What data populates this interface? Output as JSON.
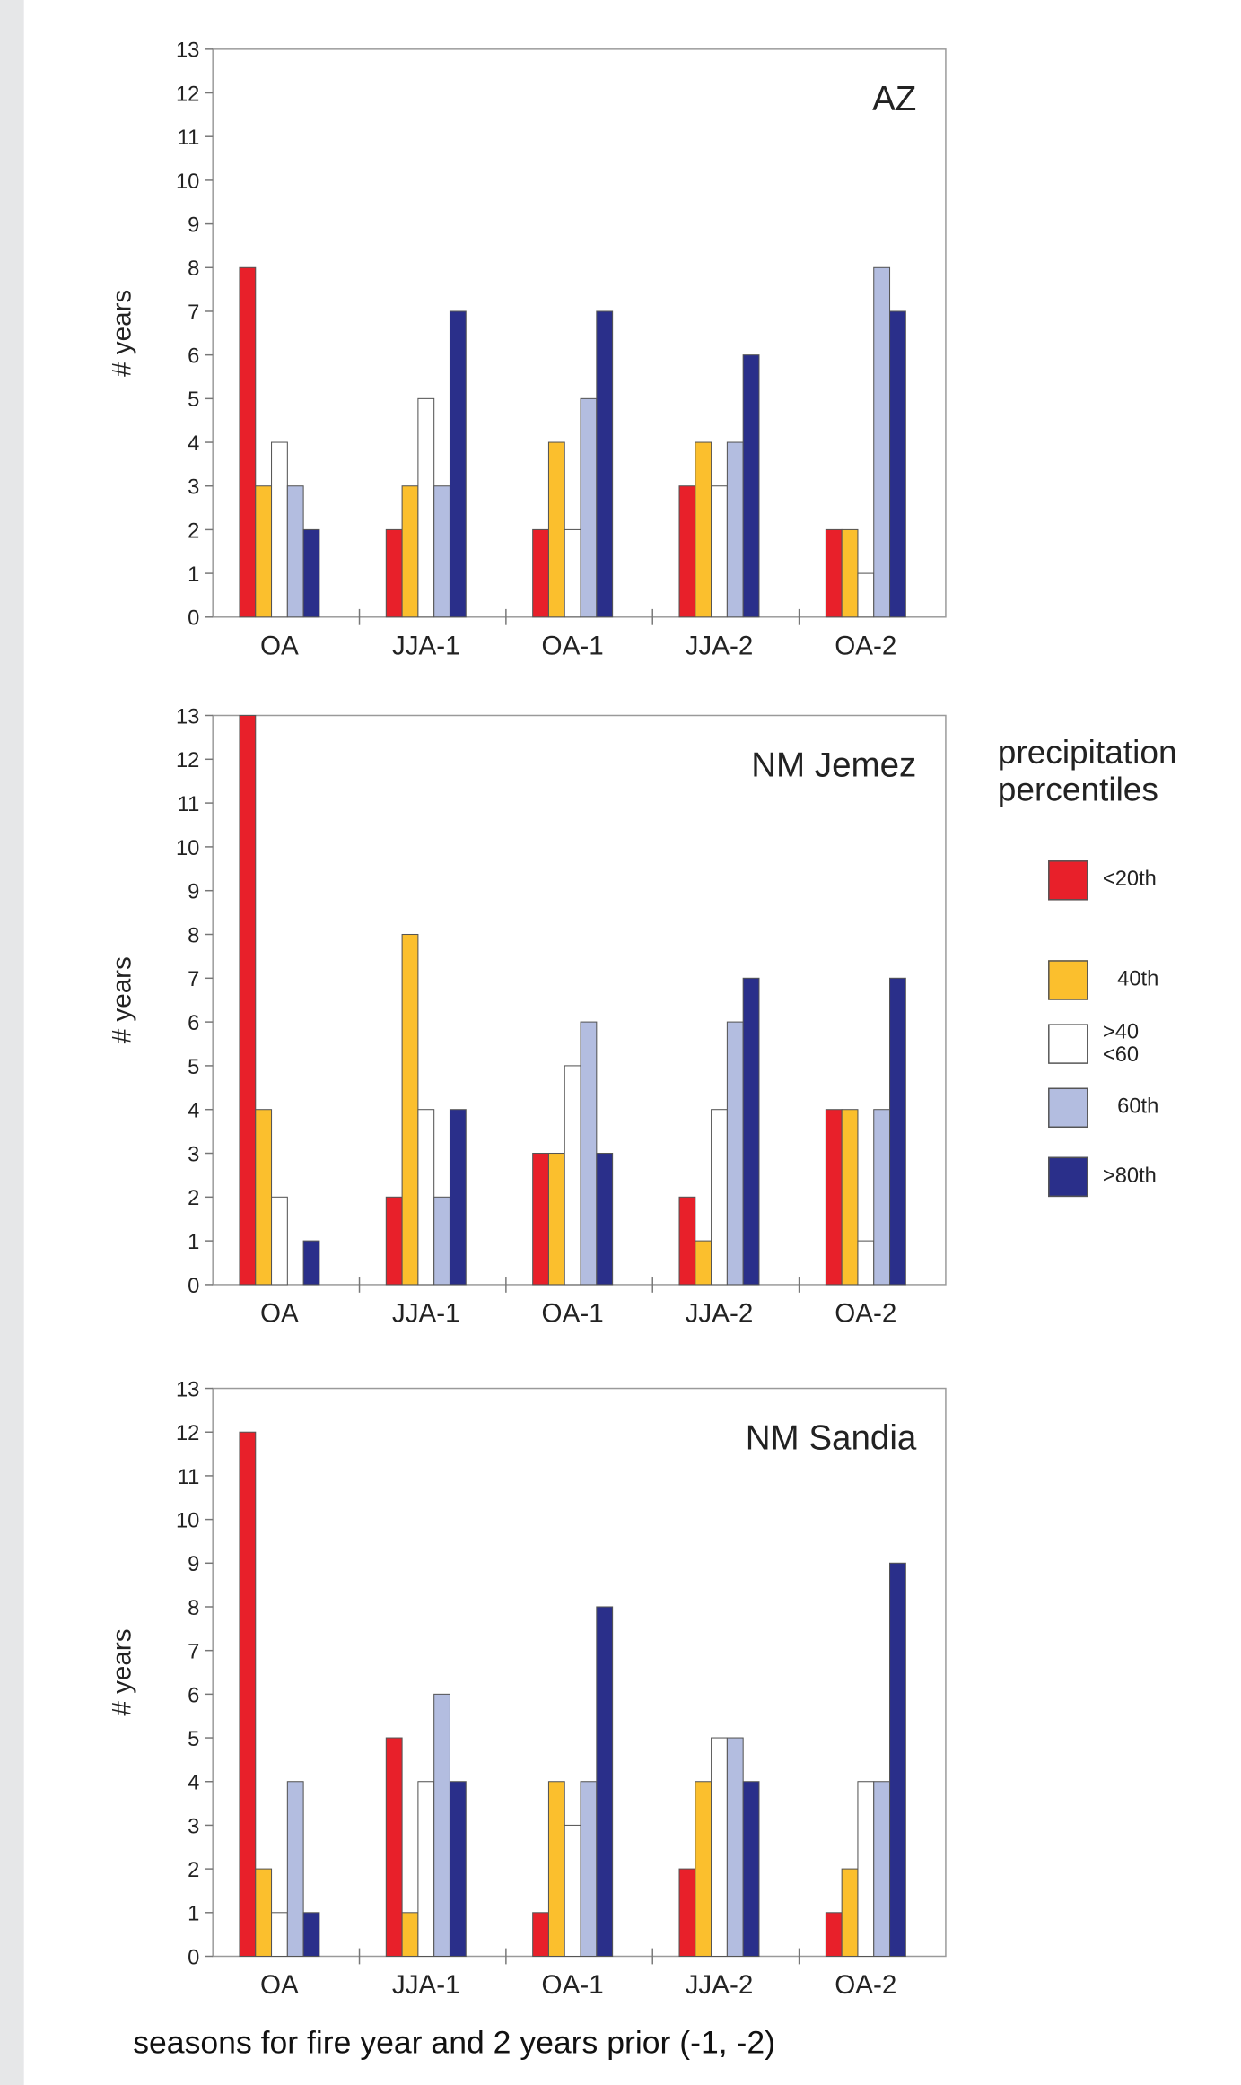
{
  "chart_data": [
    {
      "type": "bar",
      "title": "AZ",
      "ylabel": "# years",
      "categories": [
        "OA",
        "JJA-1",
        "OA-1",
        "JJA-2",
        "OA-2"
      ],
      "series": [
        {
          "name": "<20th",
          "color": "#e8202a",
          "values": [
            8,
            2,
            2,
            3,
            2
          ]
        },
        {
          "name": "40th",
          "color": "#fbbf2d",
          "values": [
            3,
            3,
            4,
            4,
            2
          ]
        },
        {
          "name": ">40\n<60",
          "color": "#ffffff",
          "values": [
            4,
            5,
            2,
            3,
            1
          ]
        },
        {
          "name": "60th",
          "color": "#b3bde0",
          "values": [
            3,
            3,
            5,
            4,
            8
          ]
        },
        {
          "name": ">80th",
          "color": "#2a2f8a",
          "values": [
            2,
            7,
            7,
            6,
            7
          ]
        }
      ],
      "ylim": [
        0,
        13
      ],
      "yticks": [
        0,
        1,
        2,
        3,
        4,
        5,
        6,
        7,
        8,
        9,
        10,
        11,
        12,
        13
      ]
    },
    {
      "type": "bar",
      "title": "NM Jemez",
      "ylabel": "# years",
      "categories": [
        "OA",
        "JJA-1",
        "OA-1",
        "JJA-2",
        "OA-2"
      ],
      "series": [
        {
          "name": "<20th",
          "color": "#e8202a",
          "values": [
            13,
            2,
            3,
            2,
            4
          ]
        },
        {
          "name": "40th",
          "color": "#fbbf2d",
          "values": [
            4,
            8,
            3,
            1,
            4
          ]
        },
        {
          "name": ">40\n<60",
          "color": "#ffffff",
          "values": [
            2,
            4,
            5,
            4,
            1
          ]
        },
        {
          "name": "60th",
          "color": "#b3bde0",
          "values": [
            0,
            2,
            6,
            6,
            4
          ]
        },
        {
          "name": ">80th",
          "color": "#2a2f8a",
          "values": [
            1,
            4,
            3,
            7,
            7
          ]
        }
      ],
      "ylim": [
        0,
        13
      ],
      "yticks": [
        0,
        1,
        2,
        3,
        4,
        5,
        6,
        7,
        8,
        9,
        10,
        11,
        12,
        13
      ]
    },
    {
      "type": "bar",
      "title": "NM Sandia",
      "ylabel": "# years",
      "categories": [
        "OA",
        "JJA-1",
        "OA-1",
        "JJA-2",
        "OA-2"
      ],
      "series": [
        {
          "name": "<20th",
          "color": "#e8202a",
          "values": [
            12,
            5,
            1,
            2,
            1
          ]
        },
        {
          "name": "40th",
          "color": "#fbbf2d",
          "values": [
            2,
            1,
            4,
            4,
            2
          ]
        },
        {
          "name": ">40\n<60",
          "color": "#ffffff",
          "values": [
            1,
            4,
            3,
            5,
            4
          ]
        },
        {
          "name": "60th",
          "color": "#b3bde0",
          "values": [
            4,
            6,
            4,
            5,
            4
          ]
        },
        {
          "name": ">80th",
          "color": "#2a2f8a",
          "values": [
            1,
            4,
            8,
            4,
            9
          ]
        }
      ],
      "ylim": [
        0,
        13
      ],
      "yticks": [
        0,
        1,
        2,
        3,
        4,
        5,
        6,
        7,
        8,
        9,
        10,
        11,
        12,
        13
      ]
    }
  ],
  "legend_title": "precipitation\npercentiles",
  "xlabel": "seasons for fire year and 2 years prior (-1, -2)"
}
